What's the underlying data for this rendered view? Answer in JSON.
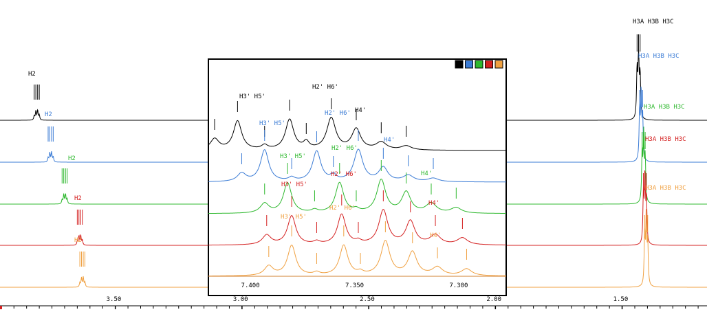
{
  "colors": {
    "black": "#000000",
    "blue": "#3a7bd5",
    "green": "#2db82d",
    "red": "#d42020",
    "orange": "#f0a040"
  },
  "chart_data": {
    "type": "line",
    "xlabel": "",
    "ylabel": "",
    "x_unit": "ppm",
    "x_reversed": true,
    "main_xlim": [
      3.955,
      1.165
    ],
    "main_ticks": [
      {
        "v": 3.5,
        "label": "3.50"
      },
      {
        "v": 3.0,
        "label": "3.00"
      },
      {
        "v": 2.5,
        "label": "2.50"
      },
      {
        "v": 2.0,
        "label": "2.00"
      },
      {
        "v": 1.5,
        "label": "1.50"
      }
    ],
    "series": [
      {
        "color": "black",
        "h2_pos": 3.81,
        "h3_pos": 1.435
      },
      {
        "color": "blue",
        "h2_pos": 3.755,
        "h3_pos": 1.425
      },
      {
        "color": "green",
        "h2_pos": 3.7,
        "h3_pos": 1.415
      },
      {
        "color": "red",
        "h2_pos": 3.64,
        "h3_pos": 1.41
      },
      {
        "color": "orange",
        "h2_pos": 3.63,
        "h3_pos": 1.405
      }
    ],
    "main_labels": {
      "h2": [
        "H2",
        "H2",
        "H2",
        "H2",
        "H2"
      ],
      "h3": [
        "H3A H3B H3C",
        "H3A H3B H3C",
        "H3A H3B H3C",
        "H3A H3B H3C",
        "H3A H3B H3C"
      ]
    },
    "inset": {
      "xlim": [
        7.42,
        7.277
      ],
      "ticks": [
        {
          "v": 7.4,
          "label": "7.400"
        },
        {
          "v": 7.35,
          "label": "7.350"
        },
        {
          "v": 7.3,
          "label": "7.300"
        }
      ],
      "legend_colors": [
        "black",
        "blue",
        "green",
        "red",
        "orange"
      ],
      "labels": [
        {
          "h35": "H3' H5'",
          "h26": "H2' H6'",
          "h4": "H4'"
        },
        {
          "h35": "H3' H5'",
          "h26": "H2' H6'",
          "h4": "H4'"
        },
        {
          "h35": "H3' H5'",
          "h26": "H2' H6'",
          "h4": "H4'"
        },
        {
          "h35": "H3' H5'",
          "h26": "H2' H6'",
          "h4": "H4'"
        },
        {
          "h35": "H3' H5'",
          "h26": "H2' H6'",
          "h4": "H4'"
        }
      ],
      "peaks": [
        [
          7.417,
          7.406,
          7.393,
          7.381,
          7.373,
          7.361,
          7.349,
          7.337,
          7.325
        ],
        [
          7.404,
          7.393,
          7.38,
          7.368,
          7.36,
          7.348,
          7.336,
          7.324,
          7.312
        ],
        [
          7.393,
          7.382,
          7.369,
          7.357,
          7.349,
          7.337,
          7.325,
          7.313,
          7.301
        ],
        [
          7.392,
          7.38,
          7.368,
          7.356,
          7.348,
          7.336,
          7.323,
          7.311,
          7.298
        ],
        [
          7.391,
          7.38,
          7.368,
          7.355,
          7.347,
          7.335,
          7.322,
          7.31,
          7.296
        ]
      ]
    }
  }
}
